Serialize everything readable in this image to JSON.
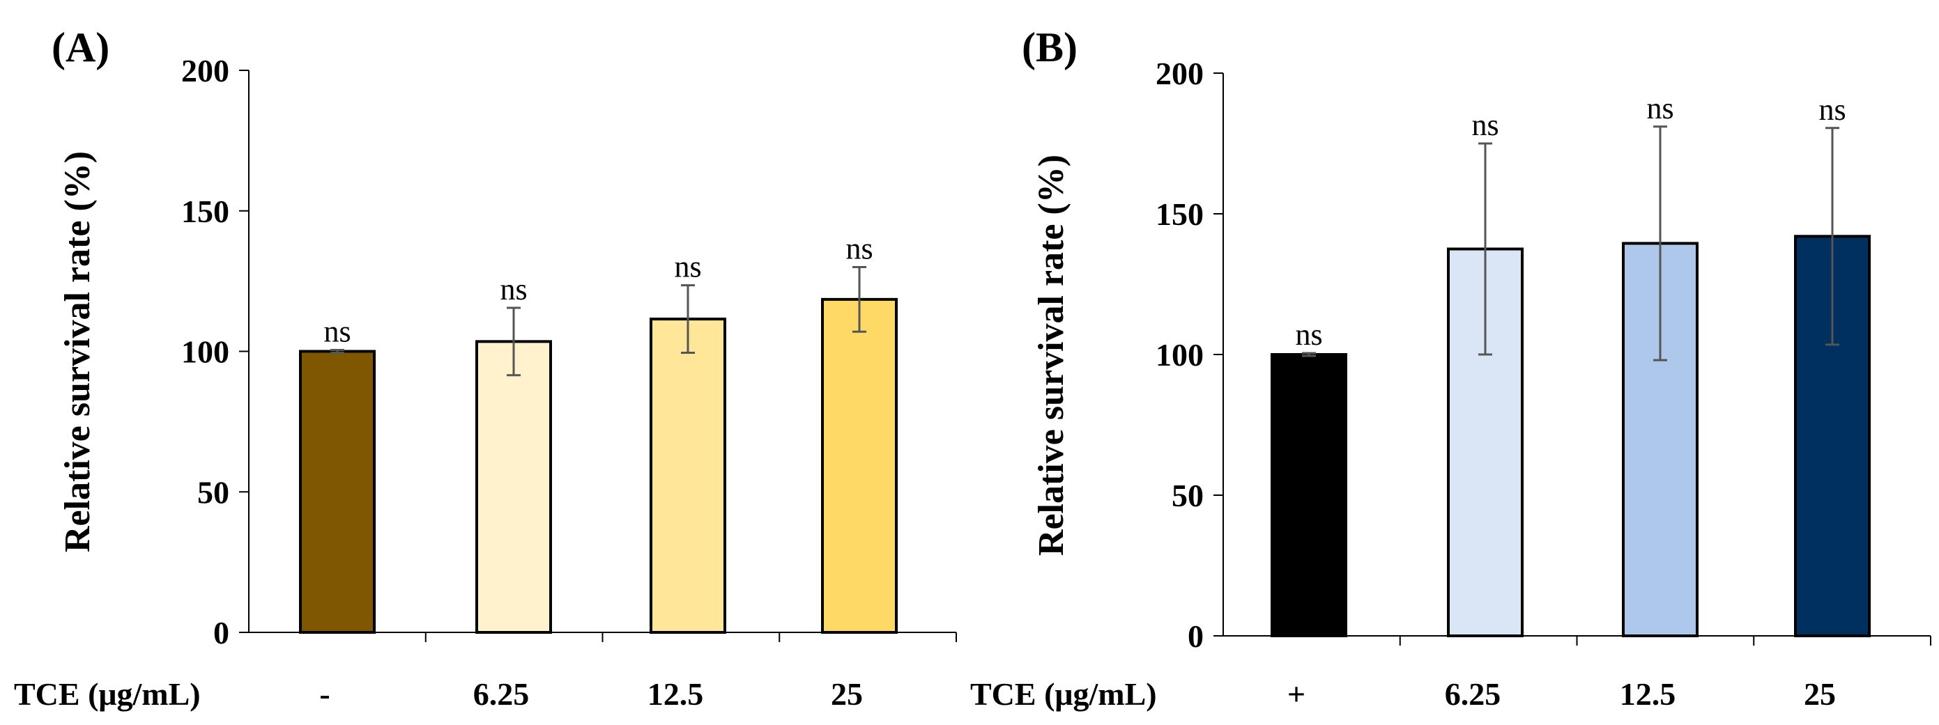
{
  "chart_data": [
    {
      "type": "bar",
      "panel_label": "(A)",
      "ylabel": "Relative survival rate (%)",
      "xlabel": "TCE (μg/mL)",
      "ylim": [
        0,
        200
      ],
      "yticks": [
        0,
        50,
        100,
        150,
        200
      ],
      "categories": [
        "-",
        "6.25",
        "12.5",
        "25"
      ],
      "values": [
        100,
        103.5,
        111.5,
        118.5
      ],
      "errors": [
        0.5,
        12,
        12,
        11.5
      ],
      "significance": [
        "ns",
        "ns",
        "ns",
        "ns"
      ],
      "colors": [
        "#7f5700",
        "#fff2cc",
        "#ffe699",
        "#ffd966"
      ],
      "grid": false
    },
    {
      "type": "bar",
      "panel_label": "(B)",
      "ylabel": "Relative survival rate (%)",
      "xlabel": "TCE (μg/mL)",
      "ylim": [
        0,
        200
      ],
      "yticks": [
        0,
        50,
        100,
        150,
        200
      ],
      "categories": [
        "+",
        "6.25",
        "12.5",
        "25"
      ],
      "values": [
        100,
        137.5,
        139.5,
        142
      ],
      "errors": [
        0.5,
        37.5,
        41.5,
        38.5
      ],
      "significance": [
        "ns",
        "ns",
        "ns",
        "ns"
      ],
      "colors": [
        "#000000",
        "#dae6f5",
        "#adc8ea",
        "#00305f"
      ],
      "grid": false
    }
  ]
}
